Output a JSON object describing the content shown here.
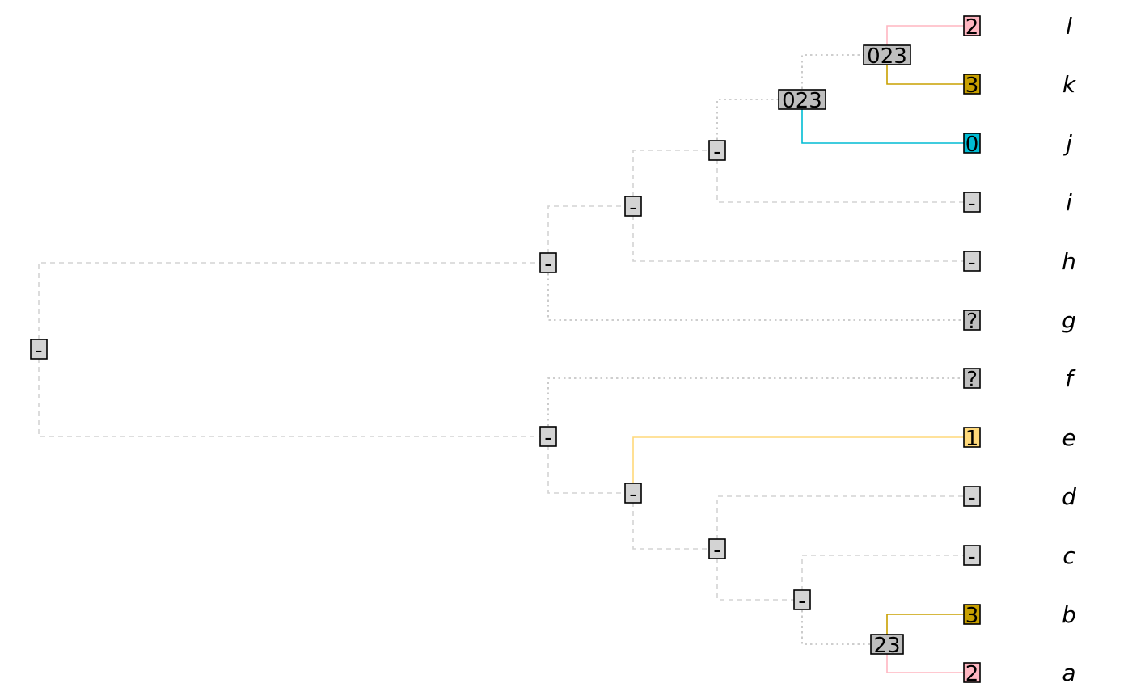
{
  "tips": [
    {
      "label": "l",
      "state": "2",
      "color": "#FFB6C1"
    },
    {
      "label": "k",
      "state": "3",
      "color": "#C8A000"
    },
    {
      "label": "j",
      "state": "0",
      "color": "#00BCD4"
    },
    {
      "label": "i",
      "state": "-",
      "color": "#D3D3D3"
    },
    {
      "label": "h",
      "state": "-",
      "color": "#D3D3D3"
    },
    {
      "label": "g",
      "state": "?",
      "color": "#BEBEBE"
    },
    {
      "label": "f",
      "state": "?",
      "color": "#BEBEBE"
    },
    {
      "label": "e",
      "state": "1",
      "color": "#FFD97A"
    },
    {
      "label": "d",
      "state": "-",
      "color": "#D3D3D3"
    },
    {
      "label": "c",
      "state": "-",
      "color": "#D3D3D3"
    },
    {
      "label": "b",
      "state": "3",
      "color": "#C8A000"
    },
    {
      "label": "a",
      "state": "2",
      "color": "#FFB6C1"
    }
  ],
  "internal_nodes": [
    {
      "id": "root",
      "state": "-",
      "color": "#D3D3D3"
    },
    {
      "id": "n_upper",
      "state": "-",
      "color": "#D3D3D3"
    },
    {
      "id": "n_hijkl",
      "state": "-",
      "color": "#D3D3D3"
    },
    {
      "id": "n_ijkl",
      "state": "-",
      "color": "#D3D3D3"
    },
    {
      "id": "n_jkl",
      "state": "023",
      "color": "#BEBEBE"
    },
    {
      "id": "n_kl",
      "state": "023",
      "color": "#BEBEBE"
    },
    {
      "id": "n_lower",
      "state": "-",
      "color": "#D3D3D3"
    },
    {
      "id": "n_abcde",
      "state": "-",
      "color": "#D3D3D3"
    },
    {
      "id": "n_abcd",
      "state": "-",
      "color": "#D3D3D3"
    },
    {
      "id": "n_abc",
      "state": "-",
      "color": "#D3D3D3"
    },
    {
      "id": "n_ab",
      "state": "23",
      "color": "#BEBEBE"
    }
  ],
  "edge_styles": {
    "inapplicable": {
      "color": "#D3D3D3",
      "dash": "dashed"
    },
    "ambiguous": {
      "color": "#BEBEBE",
      "dash": "dotted"
    },
    "state_0": {
      "color": "#00BCD4",
      "dash": "solid"
    },
    "state_1": {
      "color": "#FFD97A",
      "dash": "solid"
    },
    "state_2": {
      "color": "#FFB6C1",
      "dash": "solid"
    },
    "state_3": {
      "color": "#C8A000",
      "dash": "solid"
    }
  }
}
